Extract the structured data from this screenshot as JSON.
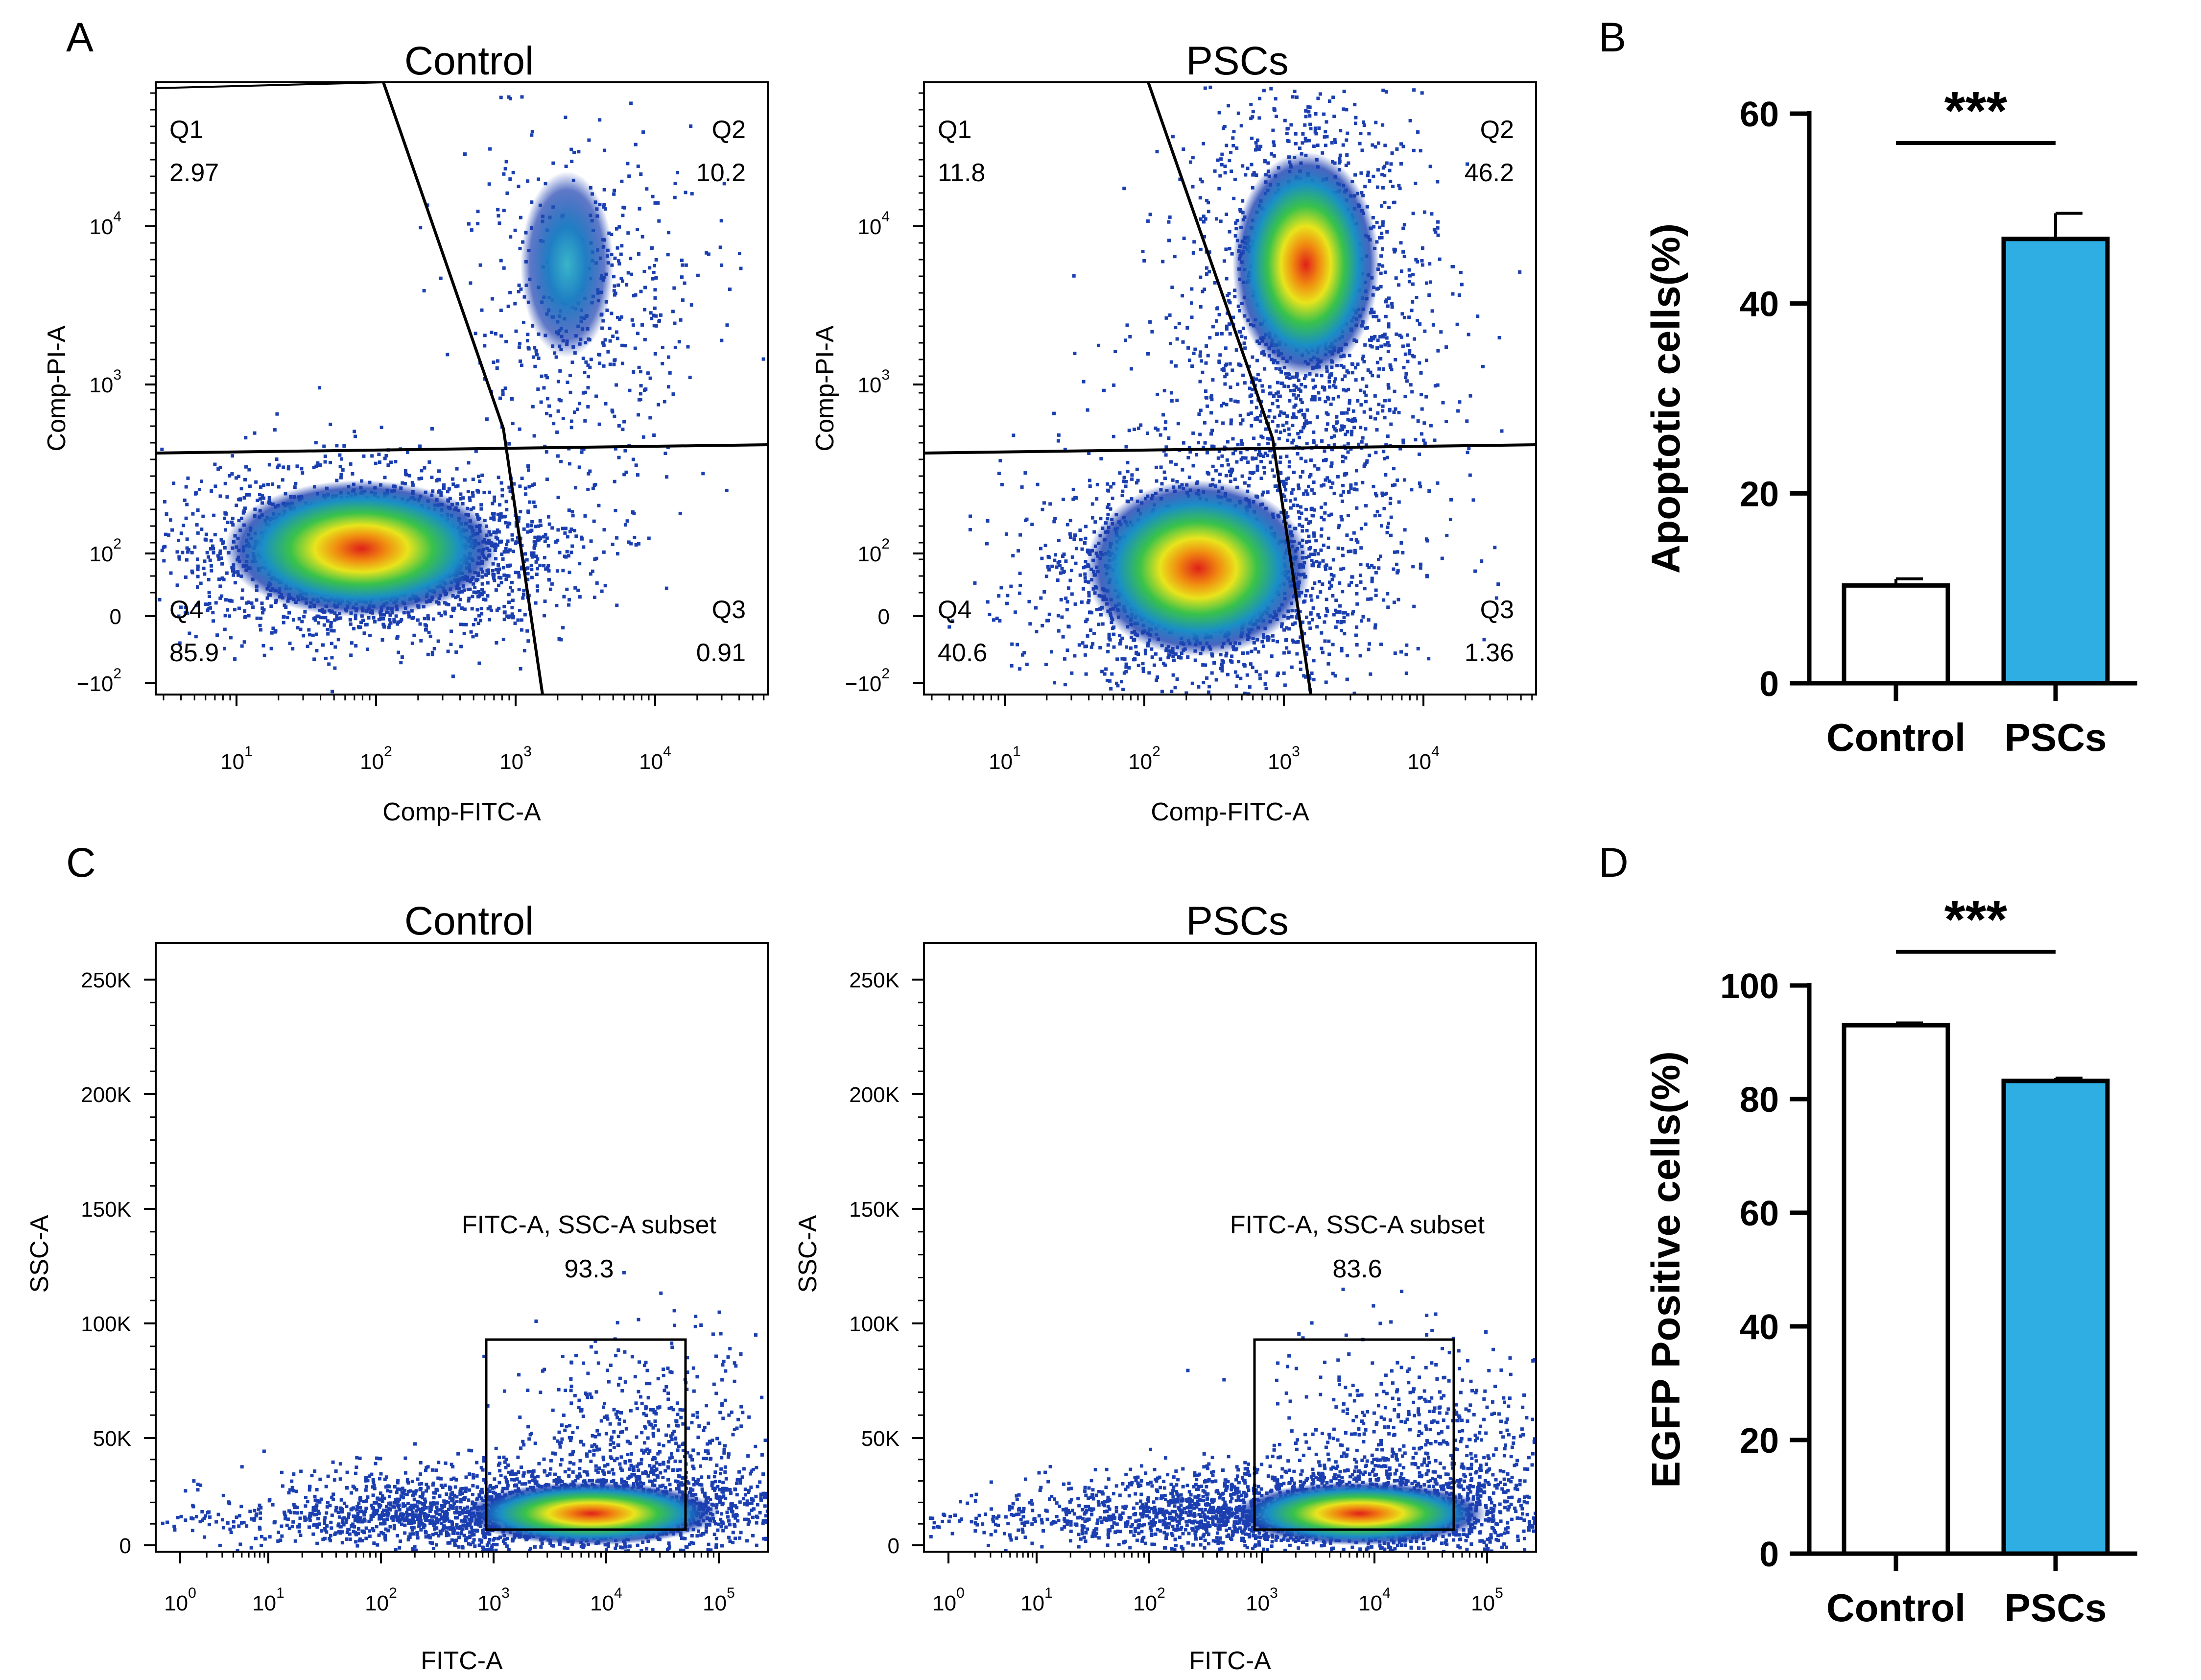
{
  "panel_labels": [
    "A",
    "B",
    "C",
    "D"
  ],
  "colors": {
    "bar_control": "#ffffff",
    "bar_pscs": "#2eaee3",
    "frame": "#000000"
  },
  "chart_data": [
    {
      "type": "scatter",
      "panel": "A",
      "title": "Control",
      "xlabel": "Comp-FITC-A",
      "ylabel": "Comp-PI-A",
      "x_ticks": [
        {
          "base": "10",
          "exp": "1"
        },
        {
          "base": "10",
          "exp": "2"
        },
        {
          "base": "10",
          "exp": "3"
        },
        {
          "base": "10",
          "exp": "4"
        }
      ],
      "y_ticks": [
        {
          "base": "10",
          "exp": "4"
        },
        {
          "base": "10",
          "exp": "3"
        },
        {
          "base": "10",
          "exp": "2"
        },
        {
          "base": "0",
          "exp": ""
        },
        {
          "base": "−10",
          "exp": "2"
        }
      ],
      "quadrants": [
        {
          "name": "Q1",
          "value": "2.97"
        },
        {
          "name": "Q2",
          "value": "10.2"
        },
        {
          "name": "Q3",
          "value": "0.91"
        },
        {
          "name": "Q4",
          "value": "85.9"
        }
      ]
    },
    {
      "type": "scatter",
      "panel": "A",
      "title": "PSCs",
      "xlabel": "Comp-FITC-A",
      "ylabel": "Comp-PI-A",
      "x_ticks": [
        {
          "base": "10",
          "exp": "1"
        },
        {
          "base": "10",
          "exp": "2"
        },
        {
          "base": "10",
          "exp": "3"
        },
        {
          "base": "10",
          "exp": "4"
        }
      ],
      "y_ticks": [
        {
          "base": "10",
          "exp": "4"
        },
        {
          "base": "10",
          "exp": "3"
        },
        {
          "base": "10",
          "exp": "2"
        },
        {
          "base": "0",
          "exp": ""
        },
        {
          "base": "−10",
          "exp": "2"
        }
      ],
      "quadrants": [
        {
          "name": "Q1",
          "value": "11.8"
        },
        {
          "name": "Q2",
          "value": "46.2"
        },
        {
          "name": "Q3",
          "value": "1.36"
        },
        {
          "name": "Q4",
          "value": "40.6"
        }
      ]
    },
    {
      "type": "bar",
      "panel": "B",
      "categories": [
        "Control",
        "PSCs"
      ],
      "values": [
        10.3,
        46.8
      ],
      "errors": [
        0.7,
        2.7
      ],
      "ylabel": "Apoptotic cells(%)",
      "ylim": [
        0,
        60
      ],
      "yticks": [
        0,
        20,
        40,
        60
      ],
      "significance": "***"
    },
    {
      "type": "scatter",
      "panel": "C",
      "title": "Control",
      "xlabel": "FITC-A",
      "ylabel": "SSC-A",
      "x_ticks": [
        {
          "base": "10",
          "exp": "0"
        },
        {
          "base": "10",
          "exp": "1"
        },
        {
          "base": "10",
          "exp": "2"
        },
        {
          "base": "10",
          "exp": "3"
        },
        {
          "base": "10",
          "exp": "4"
        },
        {
          "base": "10",
          "exp": "5"
        }
      ],
      "y_ticks": [
        "250K",
        "200K",
        "150K",
        "100K",
        "50K",
        "0"
      ],
      "gate": {
        "name": "FITC-A, SSC-A subset",
        "value": "93.3"
      }
    },
    {
      "type": "scatter",
      "panel": "C",
      "title": "PSCs",
      "xlabel": "FITC-A",
      "ylabel": "SSC-A",
      "x_ticks": [
        {
          "base": "10",
          "exp": "0"
        },
        {
          "base": "10",
          "exp": "1"
        },
        {
          "base": "10",
          "exp": "2"
        },
        {
          "base": "10",
          "exp": "3"
        },
        {
          "base": "10",
          "exp": "4"
        },
        {
          "base": "10",
          "exp": "5"
        }
      ],
      "y_ticks": [
        "250K",
        "200K",
        "150K",
        "100K",
        "50K",
        "0"
      ],
      "gate": {
        "name": "FITC-A, SSC-A subset",
        "value": "83.6"
      }
    },
    {
      "type": "bar",
      "panel": "D",
      "categories": [
        "Control",
        "PSCs"
      ],
      "values": [
        93.0,
        83.2
      ],
      "errors": [
        0.4,
        0.5
      ],
      "ylabel": "EGFP Positive cells(%)",
      "ylim": [
        0,
        100
      ],
      "yticks": [
        0,
        20,
        40,
        60,
        80,
        100
      ],
      "significance": "***"
    }
  ]
}
